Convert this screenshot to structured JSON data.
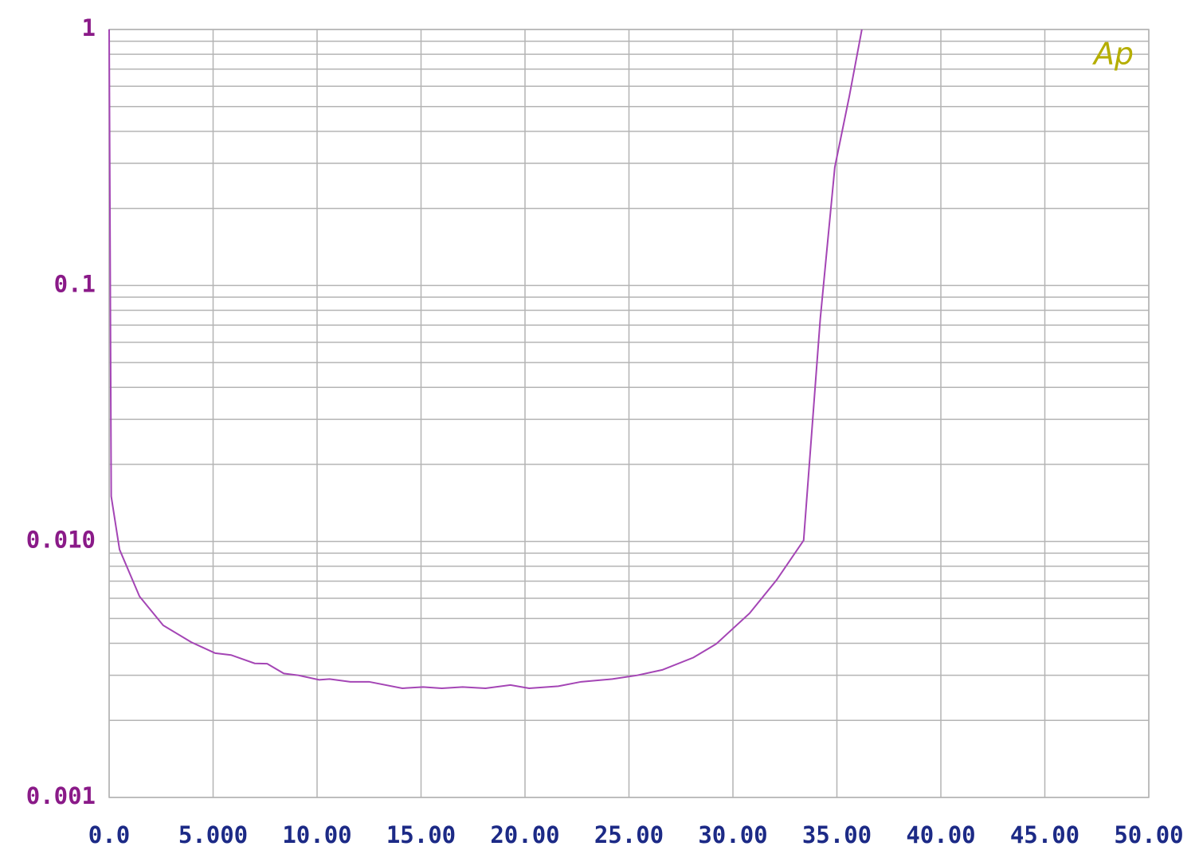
{
  "chart_data": {
    "type": "line",
    "logo": "Ap",
    "logo_color": "#b5ae00",
    "log_y": true,
    "grid": true,
    "minor_grid": true,
    "x": [
      0,
      0.1,
      0.5,
      1.46,
      2.6,
      3.95,
      5.1,
      5.86,
      7.0,
      7.6,
      8.4,
      9.1,
      10.1,
      10.6,
      11.6,
      12.5,
      14.1,
      15.1,
      16.0,
      17.0,
      18.1,
      19.3,
      20.2,
      21.6,
      22.7,
      24.2,
      25.4,
      26.6,
      28.1,
      29.2,
      30.8,
      32.1,
      33.4,
      34.2,
      34.9,
      35.6,
      36.2
    ],
    "series": [
      {
        "color": "#a445b5",
        "values": [
          1,
          0.015,
          0.0093,
          0.0061,
          0.0047,
          0.00404,
          0.00366,
          0.0036,
          0.00334,
          0.00333,
          0.00305,
          0.003,
          0.00288,
          0.0029,
          0.00283,
          0.00283,
          0.00267,
          0.0027,
          0.00267,
          0.0027,
          0.00267,
          0.00275,
          0.00267,
          0.00272,
          0.00283,
          0.0029,
          0.003,
          0.00315,
          0.00352,
          0.00398,
          0.00524,
          0.00707,
          0.0101,
          0.074,
          0.29,
          0.55,
          1
        ]
      }
    ],
    "xlim": [
      0,
      50
    ],
    "xticks": [
      {
        "value": 0,
        "label": "0.0"
      },
      {
        "value": 5,
        "label": "5.000"
      },
      {
        "value": 10,
        "label": "10.00"
      },
      {
        "value": 15,
        "label": "15.00"
      },
      {
        "value": 20,
        "label": "20.00"
      },
      {
        "value": 25,
        "label": "25.00"
      },
      {
        "value": 30,
        "label": "30.00"
      },
      {
        "value": 35,
        "label": "35.00"
      },
      {
        "value": 40,
        "label": "40.00"
      },
      {
        "value": 45,
        "label": "45.00"
      },
      {
        "value": 50,
        "label": "50.00"
      }
    ],
    "ylim": [
      0.001,
      1
    ],
    "yticks": [
      1,
      0.1,
      {
        "value": 0.01,
        "label": "0.010"
      },
      0.001
    ],
    "x_label_color": "#1c2a86",
    "y_label_color": "#8a1a88",
    "grid_color": "#b4b4b4"
  }
}
